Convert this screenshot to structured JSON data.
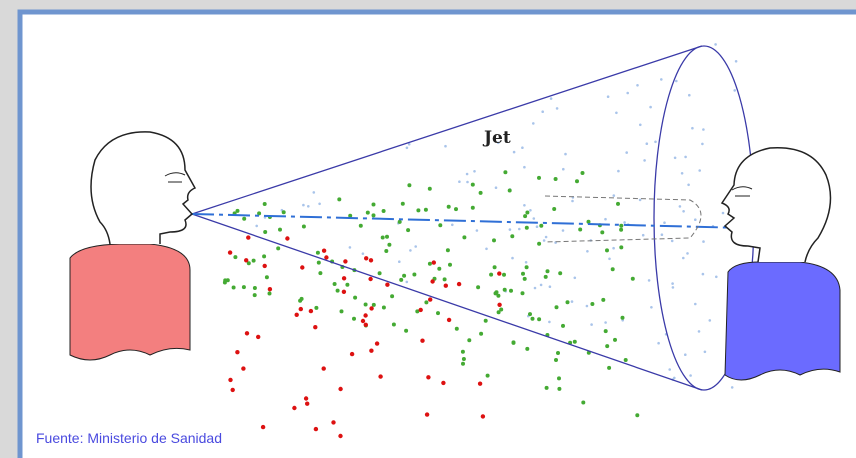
{
  "diagram": {
    "label": "Jet"
  },
  "caption": "Fuente: Ministerio de Sanidad"
}
